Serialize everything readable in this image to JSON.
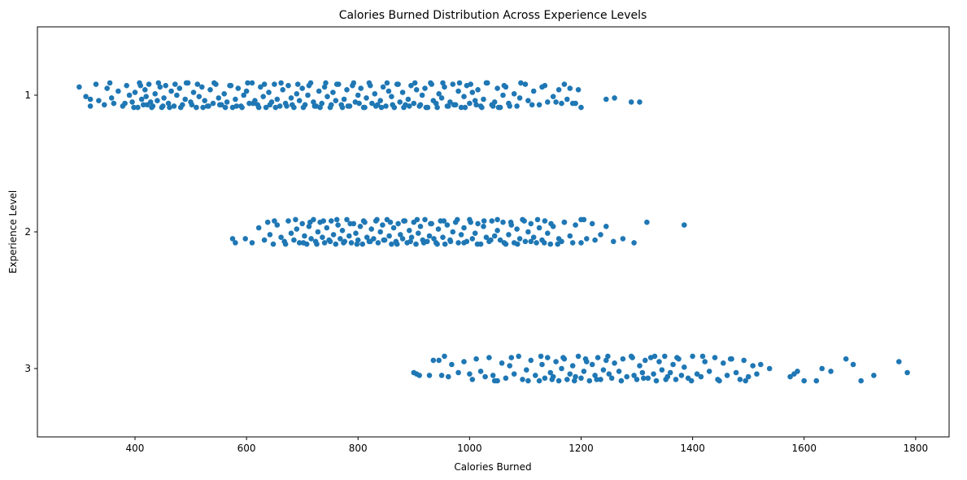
{
  "chart_data": {
    "type": "scatter",
    "subtype": "strip",
    "title": "Calories Burned Distribution Across Experience Levels",
    "xlabel": "Calories Burned",
    "ylabel": "Experience Level",
    "xlim": [
      225,
      1860
    ],
    "xticks": [
      400,
      600,
      800,
      1000,
      1200,
      1400,
      1600,
      1800
    ],
    "categories": [
      "1",
      "2",
      "3"
    ],
    "grid": false,
    "legend": "none",
    "marker_color": "#1f77b4",
    "series": [
      {
        "category": "1",
        "x": [
          300,
          312,
          320,
          330,
          335,
          345,
          350,
          358,
          362,
          370,
          378,
          385,
          390,
          395,
          400,
          405,
          408,
          412,
          415,
          418,
          420,
          425,
          428,
          432,
          436,
          440,
          445,
          448,
          452,
          455,
          460,
          465,
          470,
          475,
          480,
          485,
          490,
          495,
          500,
          505,
          510,
          515,
          520,
          525,
          530,
          535,
          540,
          545,
          550,
          555,
          560,
          565,
          570,
          575,
          580,
          585,
          590,
          595,
          600,
          605,
          610,
          615,
          620,
          625,
          630,
          635,
          640,
          645,
          650,
          655,
          660,
          665,
          670,
          675,
          680,
          685,
          690,
          695,
          700,
          705,
          710,
          715,
          720,
          725,
          730,
          735,
          740,
          745,
          750,
          755,
          760,
          765,
          770,
          775,
          780,
          785,
          790,
          795,
          800,
          805,
          810,
          815,
          820,
          825,
          830,
          835,
          840,
          845,
          850,
          855,
          860,
          865,
          870,
          875,
          880,
          885,
          890,
          895,
          900,
          905,
          910,
          915,
          920,
          925,
          930,
          935,
          940,
          945,
          950,
          955,
          960,
          965,
          970,
          975,
          980,
          985,
          990,
          995,
          1000,
          1005,
          1010,
          1015,
          1020,
          1025,
          1030,
          1040,
          1045,
          1050,
          1055,
          1060,
          1065,
          1070,
          1080,
          1085,
          1090,
          1100,
          1105,
          1115,
          1125,
          1135,
          1140,
          1150,
          1160,
          1165,
          1175,
          1180,
          1190,
          1200,
          1245,
          1260,
          1290,
          1305
        ],
        "jitter": [
          -0.06,
          0.01,
          0.03,
          -0.08,
          0.04,
          0.07,
          -0.05,
          0.02,
          0.06,
          -0.03,
          0.08,
          -0.07,
          0.0,
          0.05,
          -0.02,
          0.09,
          -0.09,
          0.03,
          0.07,
          -0.04,
          0.01,
          -0.08,
          0.05,
          0.08,
          -0.01,
          0.04,
          -0.06,
          0.09,
          0.02,
          -0.07,
          0.06,
          -0.03,
          0.08,
          0.0,
          -0.05,
          0.07,
          0.03,
          -0.09,
          0.05,
          -0.02,
          0.09,
          0.01,
          -0.06,
          0.04,
          0.08,
          -0.04,
          0.06,
          -0.08,
          0.02,
          0.07,
          -0.01,
          0.05,
          -0.07,
          0.09,
          0.03,
          -0.05,
          0.08,
          0.0,
          -0.03,
          0.06,
          -0.09,
          0.04,
          0.07,
          -0.06,
          0.01,
          0.09,
          -0.02,
          0.05,
          -0.08,
          0.03,
          0.08,
          -0.04,
          0.06,
          -0.07,
          0.02,
          0.09,
          -0.01,
          0.04,
          -0.05,
          0.07,
          0.0,
          -0.09,
          0.05,
          0.08,
          -0.03,
          0.06,
          -0.06,
          0.01,
          0.09,
          -0.02,
          0.04,
          -0.08,
          0.07,
          0.03,
          -0.04,
          0.08,
          -0.07,
          0.05,
          0.0,
          -0.05,
          0.09,
          0.02,
          -0.09,
          0.06,
          -0.01,
          0.07,
          0.04,
          -0.06,
          0.08,
          -0.03,
          0.01,
          0.09,
          -0.08,
          0.05,
          -0.02,
          0.07,
          0.03,
          -0.07,
          0.06,
          -0.04,
          0.08,
          0.0,
          -0.05,
          0.09,
          -0.09,
          0.04,
          0.06,
          -0.01,
          0.02,
          -0.06,
          0.08,
          0.05,
          -0.08,
          0.07,
          -0.03,
          0.09,
          0.01,
          -0.07,
          0.06,
          -0.02,
          0.04,
          -0.04,
          0.08,
          0.03,
          -0.09,
          0.07,
          0.05,
          -0.05,
          0.09,
          0.0,
          -0.06,
          0.06,
          -0.01,
          0.08,
          0.02,
          -0.08,
          0.04,
          -0.03,
          0.07,
          -0.07,
          0.05,
          0.01,
          -0.04,
          0.06,
          0.03,
          -0.05,
          0.06,
          0.09,
          0.03,
          0.02,
          0.05,
          0.05
        ],
        "x_extra": [
          320,
          355,
          382,
          398,
          410,
          422,
          430,
          442,
          450,
          462,
          472,
          482,
          492,
          502,
          512,
          522,
          532,
          542,
          552,
          562,
          572,
          582,
          592,
          602,
          612,
          622,
          632,
          642,
          652,
          662,
          672,
          682,
          692,
          702,
          712,
          722,
          732,
          742,
          752,
          762,
          772,
          782,
          792,
          802,
          812,
          822,
          832,
          842,
          852,
          862,
          872,
          882,
          892,
          902,
          912,
          922,
          932,
          942,
          952,
          962,
          972,
          982,
          992,
          1002,
          1012,
          1022,
          1032,
          1042,
          1052,
          1062,
          1072,
          1092,
          1112,
          1130,
          1155,
          1170,
          1185,
          1195
        ],
        "jitter_extra": [
          0.08,
          -0.09,
          0.06,
          0.09,
          -0.07,
          0.07,
          0.09,
          -0.09,
          0.08,
          0.09,
          -0.08,
          0.09,
          -0.09,
          0.07,
          -0.08,
          0.09,
          0.08,
          -0.09,
          0.07,
          0.09,
          -0.07,
          0.08,
          0.09,
          -0.09,
          0.06,
          0.09,
          -0.08,
          0.07,
          0.09,
          -0.09,
          0.08,
          0.07,
          -0.08,
          0.09,
          -0.07,
          0.08,
          0.09,
          -0.09,
          0.07,
          -0.08,
          0.09,
          0.08,
          -0.09,
          0.06,
          0.09,
          -0.07,
          0.08,
          0.09,
          -0.09,
          0.07,
          -0.08,
          0.09,
          0.08,
          -0.09,
          0.07,
          0.09,
          -0.08,
          0.09,
          -0.09,
          0.08,
          0.07,
          -0.09,
          0.09,
          -0.08,
          0.07,
          0.09,
          -0.09,
          0.08,
          0.09,
          -0.07,
          0.08,
          -0.09,
          0.07,
          -0.06,
          0.05,
          -0.08,
          0.06,
          -0.04
        ]
      },
      {
        "category": "2",
        "x": [
          575,
          580,
          598,
          610,
          622,
          632,
          638,
          642,
          648,
          655,
          662,
          668,
          675,
          680,
          685,
          690,
          695,
          700,
          704,
          708,
          712,
          716,
          720,
          724,
          728,
          732,
          736,
          740,
          744,
          748,
          752,
          756,
          760,
          764,
          768,
          772,
          776,
          780,
          784,
          788,
          792,
          796,
          800,
          804,
          808,
          812,
          816,
          820,
          824,
          828,
          832,
          836,
          840,
          844,
          848,
          852,
          856,
          860,
          864,
          868,
          872,
          876,
          880,
          884,
          888,
          892,
          896,
          900,
          904,
          908,
          912,
          916,
          920,
          924,
          928,
          932,
          936,
          940,
          944,
          948,
          952,
          956,
          960,
          965,
          970,
          975,
          980,
          985,
          990,
          995,
          1000,
          1005,
          1010,
          1015,
          1020,
          1025,
          1030,
          1035,
          1040,
          1045,
          1050,
          1055,
          1060,
          1065,
          1070,
          1075,
          1080,
          1085,
          1090,
          1095,
          1100,
          1105,
          1110,
          1115,
          1120,
          1125,
          1130,
          1135,
          1140,
          1145,
          1150,
          1160,
          1165,
          1170,
          1180,
          1190,
          1200,
          1205,
          1210,
          1220,
          1225,
          1235,
          1245,
          1258,
          1275,
          1295,
          1318,
          1385
        ],
        "jitter": [
          0.05,
          0.08,
          0.05,
          0.08,
          -0.03,
          0.06,
          -0.07,
          0.02,
          0.09,
          -0.05,
          0.04,
          0.07,
          -0.08,
          0.01,
          0.06,
          -0.02,
          0.08,
          -0.06,
          0.03,
          0.09,
          -0.04,
          0.05,
          -0.09,
          0.07,
          0.0,
          -0.07,
          0.04,
          0.08,
          -0.03,
          0.06,
          -0.08,
          0.02,
          0.09,
          -0.05,
          0.05,
          -0.01,
          0.07,
          -0.09,
          0.03,
          0.08,
          -0.06,
          0.01,
          0.06,
          -0.04,
          0.09,
          -0.07,
          0.04,
          0.07,
          -0.02,
          0.05,
          -0.08,
          0.08,
          0.0,
          -0.05,
          0.06,
          -0.09,
          0.03,
          0.09,
          -0.03,
          0.07,
          -0.06,
          0.02,
          0.05,
          -0.08,
          0.08,
          -0.01,
          0.04,
          -0.07,
          0.09,
          0.01,
          -0.04,
          0.06,
          -0.09,
          0.07,
          0.03,
          -0.06,
          0.05,
          0.08,
          -0.02,
          -0.08,
          0.04,
          0.09,
          -0.05,
          0.06,
          0.0,
          -0.07,
          0.08,
          0.02,
          -0.03,
          0.07,
          -0.09,
          0.05,
          0.01,
          -0.06,
          0.09,
          -0.04,
          0.04,
          0.07,
          -0.08,
          0.03,
          -0.01,
          0.06,
          -0.07,
          0.09,
          0.02,
          -0.05,
          0.08,
          -0.02,
          0.05,
          -0.09,
          0.07,
          0.0,
          -0.06,
          0.04,
          0.08,
          -0.03,
          0.06,
          -0.08,
          0.01,
          0.09,
          -0.04,
          0.05,
          0.07,
          -0.07,
          0.03,
          -0.05,
          0.08,
          -0.09,
          0.05,
          -0.06,
          0.06,
          0.02,
          -0.04,
          0.07,
          0.05,
          0.08,
          -0.07,
          -0.05
        ],
        "x_extra": [
          650,
          670,
          688,
          702,
          714,
          726,
          738,
          750,
          762,
          774,
          786,
          798,
          810,
          822,
          834,
          846,
          858,
          870,
          882,
          894,
          906,
          918,
          930,
          942,
          954,
          966,
          978,
          990,
          1002,
          1014,
          1026,
          1038,
          1050,
          1062,
          1074,
          1086,
          1098,
          1110,
          1122,
          1134,
          1146,
          1158,
          1170,
          1185,
          1200
        ],
        "jitter_extra": [
          -0.08,
          0.09,
          -0.09,
          0.08,
          -0.07,
          0.09,
          -0.08,
          0.07,
          -0.09,
          0.08,
          -0.06,
          0.09,
          -0.08,
          0.07,
          -0.09,
          0.06,
          -0.07,
          0.09,
          -0.08,
          0.07,
          -0.09,
          0.08,
          -0.06,
          0.09,
          -0.08,
          0.07,
          -0.09,
          0.08,
          -0.07,
          0.09,
          -0.08,
          0.06,
          -0.09,
          0.08,
          -0.07,
          0.09,
          -0.08,
          0.07,
          -0.09,
          0.08,
          -0.06,
          0.09,
          -0.07,
          0.08,
          -0.09
        ]
      },
      {
        "category": "3",
        "x": [
          900,
          905,
          910,
          928,
          935,
          945,
          950,
          962,
          968,
          980,
          990,
          1000,
          1005,
          1012,
          1020,
          1028,
          1035,
          1042,
          1050,
          1058,
          1065,
          1072,
          1080,
          1088,
          1095,
          1102,
          1110,
          1118,
          1125,
          1130,
          1135,
          1140,
          1145,
          1150,
          1155,
          1160,
          1165,
          1170,
          1175,
          1180,
          1185,
          1190,
          1195,
          1200,
          1205,
          1210,
          1215,
          1220,
          1225,
          1230,
          1235,
          1240,
          1245,
          1250,
          1255,
          1260,
          1268,
          1275,
          1282,
          1290,
          1295,
          1300,
          1305,
          1310,
          1315,
          1320,
          1325,
          1330,
          1335,
          1340,
          1345,
          1350,
          1355,
          1360,
          1365,
          1370,
          1375,
          1380,
          1385,
          1392,
          1400,
          1408,
          1415,
          1422,
          1430,
          1440,
          1448,
          1455,
          1462,
          1470,
          1478,
          1485,
          1492,
          1500,
          1508,
          1515,
          1522,
          1538,
          1575,
          1582,
          1588,
          1600,
          1622,
          1632,
          1648,
          1675,
          1688,
          1702,
          1725,
          1770,
          1785
        ],
        "jitter": [
          0.03,
          0.04,
          0.05,
          0.05,
          -0.06,
          -0.06,
          0.05,
          0.06,
          -0.03,
          0.03,
          -0.05,
          0.04,
          0.08,
          -0.07,
          0.02,
          0.06,
          -0.08,
          0.05,
          0.09,
          -0.04,
          0.07,
          -0.02,
          0.04,
          -0.09,
          0.08,
          0.01,
          -0.06,
          0.05,
          0.09,
          -0.03,
          0.07,
          -0.08,
          0.03,
          0.06,
          -0.05,
          0.09,
          0.0,
          -0.07,
          0.08,
          0.04,
          -0.02,
          0.06,
          -0.09,
          0.07,
          0.02,
          -0.05,
          0.09,
          -0.03,
          0.05,
          -0.08,
          0.08,
          0.01,
          -0.06,
          0.04,
          0.07,
          -0.04,
          0.02,
          -0.07,
          0.06,
          -0.09,
          0.05,
          0.08,
          -0.02,
          0.03,
          -0.06,
          0.07,
          -0.08,
          0.04,
          0.09,
          -0.05,
          0.01,
          -0.09,
          0.06,
          0.03,
          -0.03,
          0.08,
          -0.07,
          0.05,
          -0.01,
          0.07,
          -0.09,
          0.04,
          0.06,
          -0.05,
          0.02,
          -0.08,
          0.09,
          -0.04,
          0.05,
          -0.07,
          0.03,
          0.08,
          -0.06,
          0.06,
          -0.02,
          0.04,
          -0.03,
          0.0,
          0.06,
          0.04,
          0.02,
          0.09,
          0.09,
          0.0,
          0.02,
          -0.07,
          -0.03,
          0.09,
          0.05,
          -0.05,
          0.03
        ],
        "x_extra": [
          955,
          1045,
          1075,
          1105,
          1128,
          1148,
          1168,
          1188,
          1208,
          1228,
          1248,
          1272,
          1292,
          1312,
          1332,
          1352,
          1372,
          1398,
          1418,
          1445,
          1468,
          1495
        ],
        "jitter_extra": [
          -0.09,
          0.09,
          -0.08,
          0.09,
          -0.09,
          0.08,
          -0.08,
          0.09,
          -0.07,
          0.08,
          -0.09,
          0.09,
          -0.08,
          0.07,
          -0.09,
          0.08,
          -0.08,
          0.09,
          -0.09,
          0.08,
          -0.07,
          0.09
        ]
      }
    ]
  }
}
